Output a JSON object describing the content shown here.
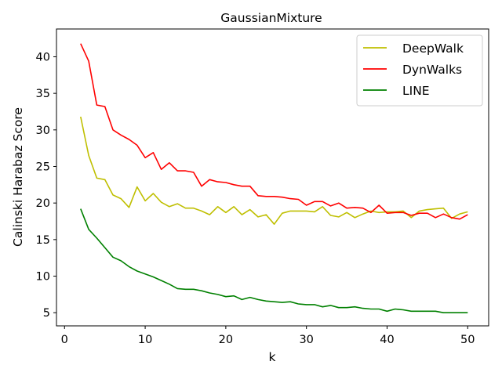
{
  "chart_data": {
    "type": "line",
    "title": "GaussianMixture",
    "xlabel": "k",
    "ylabel": "Calinski Harabaz Score",
    "xlim": [
      -1.0,
      52.6
    ],
    "ylim": [
      3.2,
      43.8
    ],
    "xticks": [
      0,
      10,
      20,
      30,
      40,
      50
    ],
    "yticks": [
      5,
      10,
      15,
      20,
      25,
      30,
      35,
      40
    ],
    "grid": false,
    "legend_position": "top-right",
    "x": [
      2,
      3,
      4,
      5,
      6,
      7,
      8,
      9,
      10,
      11,
      12,
      13,
      14,
      15,
      16,
      17,
      18,
      19,
      20,
      21,
      22,
      23,
      24,
      25,
      26,
      27,
      28,
      29,
      30,
      31,
      32,
      33,
      34,
      35,
      36,
      37,
      38,
      39,
      40,
      41,
      42,
      43,
      44,
      45,
      46,
      47,
      48,
      49,
      50
    ],
    "series": [
      {
        "name": "DeepWalk",
        "color": "#bfbf00",
        "values": [
          31.8,
          26.5,
          23.4,
          23.2,
          21.1,
          20.6,
          19.4,
          22.2,
          20.3,
          21.3,
          20.1,
          19.5,
          19.9,
          19.3,
          19.3,
          18.9,
          18.4,
          19.5,
          18.7,
          19.5,
          18.4,
          19.1,
          18.1,
          18.4,
          17.1,
          18.6,
          18.9,
          18.9,
          18.9,
          18.8,
          19.5,
          18.3,
          18.1,
          18.7,
          18.0,
          18.5,
          18.9,
          18.7,
          18.8,
          18.8,
          18.9,
          18.0,
          18.9,
          19.1,
          19.2,
          19.3,
          17.9,
          18.5,
          18.8
        ]
      },
      {
        "name": "DynWalks",
        "color": "#ff0000",
        "values": [
          41.8,
          39.4,
          33.4,
          33.2,
          30.0,
          29.3,
          28.7,
          27.9,
          26.2,
          26.9,
          24.6,
          25.5,
          24.4,
          24.4,
          24.2,
          22.3,
          23.2,
          22.9,
          22.8,
          22.5,
          22.3,
          22.3,
          21.0,
          20.9,
          20.9,
          20.8,
          20.6,
          20.5,
          19.7,
          20.2,
          20.2,
          19.6,
          20.0,
          19.3,
          19.4,
          19.3,
          18.7,
          19.7,
          18.6,
          18.7,
          18.7,
          18.3,
          18.6,
          18.6,
          18.0,
          18.5,
          18.0,
          17.8,
          18.4
        ]
      },
      {
        "name": "LINE",
        "color": "#008000",
        "values": [
          19.2,
          16.4,
          15.2,
          13.9,
          12.6,
          12.1,
          11.3,
          10.7,
          10.3,
          9.9,
          9.4,
          8.9,
          8.3,
          8.2,
          8.2,
          8.0,
          7.7,
          7.5,
          7.2,
          7.3,
          6.8,
          7.1,
          6.8,
          6.6,
          6.5,
          6.4,
          6.5,
          6.2,
          6.1,
          6.1,
          5.8,
          6.0,
          5.7,
          5.7,
          5.8,
          5.6,
          5.5,
          5.5,
          5.2,
          5.5,
          5.4,
          5.2,
          5.2,
          5.2,
          5.2,
          5.0,
          5.0,
          5.0,
          5.0
        ]
      }
    ]
  }
}
